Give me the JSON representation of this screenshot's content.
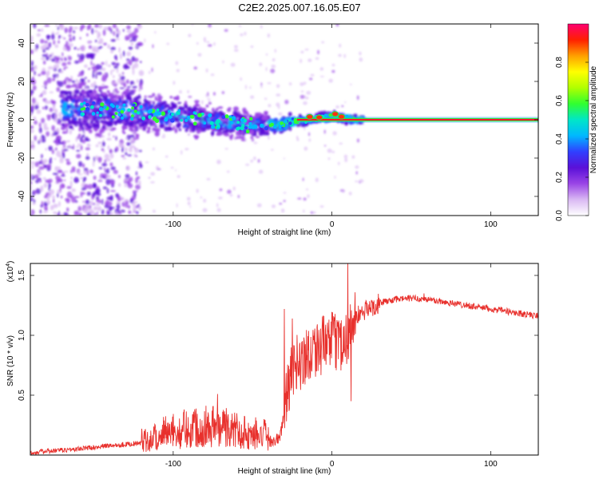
{
  "title": "C2E2.2025.007.16.05.E07",
  "chart_data": [
    {
      "type": "heatmap",
      "xlabel": "Height of straight line (km)",
      "ylabel": "Frequency (Hz)",
      "xlim": [
        -190,
        130
      ],
      "ylim": [
        -50,
        50
      ],
      "xticks": [
        -100,
        0,
        100
      ],
      "yticks": [
        -40,
        -20,
        0,
        20,
        40
      ],
      "colorbar": {
        "label": "Normalized spectral amplitude",
        "range": [
          0,
          1
        ],
        "ticks": [
          "0.0",
          "0.2",
          "0.4",
          "0.6",
          "0.8"
        ],
        "colors": [
          "#ffffff",
          "#d9b8f3",
          "#9a45e6",
          "#5a10d8",
          "#3040ff",
          "#00b8ff",
          "#00e6c8",
          "#30ff30",
          "#b0ff00",
          "#ffff00",
          "#ffa000",
          "#ff2000",
          "#ff0070"
        ]
      },
      "ridge": {
        "x": [
          -165,
          -150,
          -135,
          -120,
          -105,
          -90,
          -75,
          -60,
          -45,
          -35,
          -25,
          -15,
          -5,
          0,
          5,
          15,
          40,
          80,
          130
        ],
        "y": [
          6,
          5,
          5,
          4,
          3,
          1,
          -1,
          -2,
          -3,
          -3,
          -1,
          0,
          1,
          2,
          1,
          0,
          0,
          0,
          0
        ]
      }
    },
    {
      "type": "line",
      "xlabel": "Height of straight line (km)",
      "ylabel": "SNR (10 * v/v)",
      "multiplier": "(x10",
      "multiplier_exp": "4",
      "multiplier_close": ")",
      "xlim": [
        -190,
        130
      ],
      "ylim": [
        0,
        1.6
      ],
      "xticks": [
        -100,
        0,
        100
      ],
      "yticks": [
        0.5,
        1.0,
        1.5
      ],
      "ytick_labels": [
        "0.5",
        "1.0",
        "1.5"
      ],
      "color": "#e8302c",
      "envelope": {
        "x": [
          -190,
          -160,
          -140,
          -120,
          -110,
          -100,
          -90,
          -80,
          -70,
          -60,
          -50,
          -40,
          -33,
          -30,
          -27,
          -24,
          -20,
          -15,
          -10,
          -5,
          0,
          5,
          8,
          10,
          12,
          15,
          20,
          30,
          40,
          50,
          60,
          70,
          80,
          90,
          100,
          110,
          120,
          130
        ],
        "y": [
          0.02,
          0.05,
          0.08,
          0.1,
          0.12,
          0.18,
          0.22,
          0.25,
          0.24,
          0.2,
          0.15,
          0.12,
          0.13,
          0.35,
          0.6,
          0.75,
          0.78,
          0.85,
          0.9,
          0.92,
          0.95,
          0.95,
          0.95,
          1.0,
          1.1,
          1.15,
          1.2,
          1.27,
          1.3,
          1.31,
          1.3,
          1.28,
          1.26,
          1.24,
          1.22,
          1.2,
          1.18,
          1.16
        ]
      },
      "peaks": [
        {
          "x": -72,
          "y": 0.51
        },
        {
          "x": -30,
          "y": 1.22
        },
        {
          "x": -25,
          "y": 1.14
        },
        {
          "x": 10,
          "y": 1.6
        },
        {
          "x": 12,
          "y": 0.45
        },
        {
          "x": 58,
          "y": 1.35
        }
      ]
    }
  ]
}
